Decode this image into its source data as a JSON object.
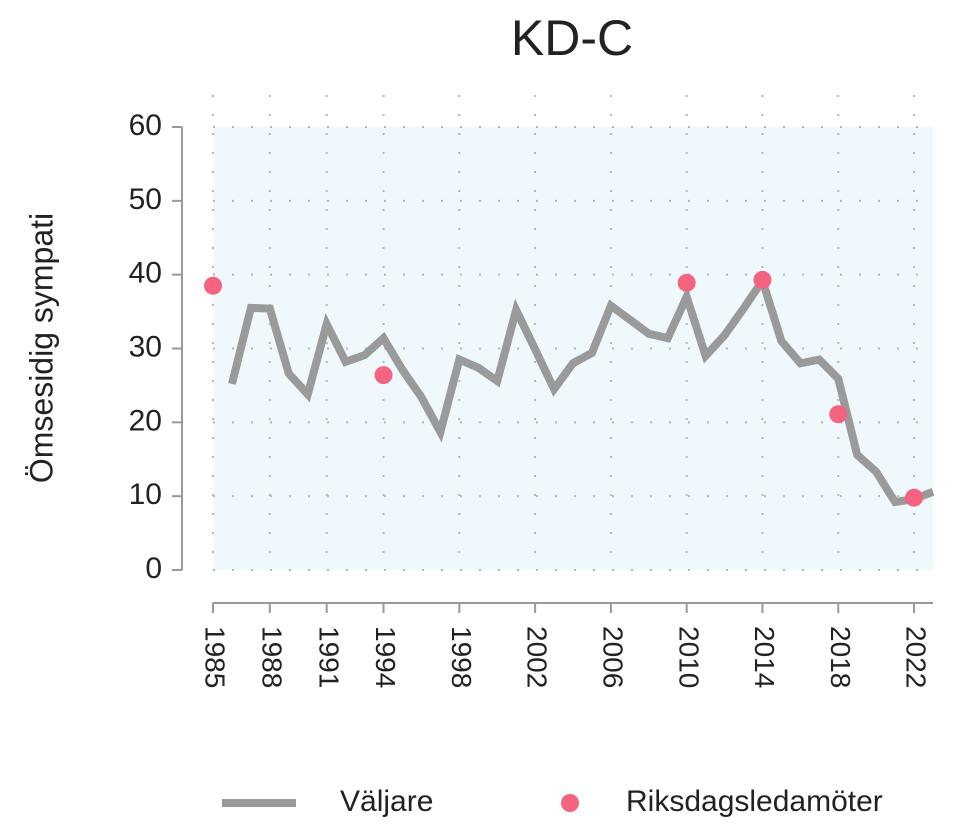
{
  "chart_data": {
    "type": "line",
    "title": "KD-C",
    "ylabel": "Ömsesidig sympati",
    "xlim": [
      1985,
      2023
    ],
    "xticks": [
      1985,
      1988,
      1991,
      1994,
      1998,
      2002,
      2006,
      2010,
      2014,
      2018,
      2022
    ],
    "ylim": [
      0,
      60
    ],
    "yticks": [
      0,
      10,
      20,
      30,
      40,
      50,
      60
    ],
    "grid": true,
    "series": [
      {
        "name": "Väljare",
        "type": "line",
        "color": "#9a9a9a",
        "x": [
          1986,
          1987,
          1988,
          1989,
          1990,
          1991,
          1992,
          1993,
          1994,
          1995,
          1996,
          1997,
          1998,
          1999,
          2000,
          2001,
          2002,
          2003,
          2004,
          2005,
          2006,
          2007,
          2008,
          2009,
          2010,
          2011,
          2012,
          2013,
          2014,
          2015,
          2016,
          2017,
          2018,
          2019,
          2020,
          2021,
          2022,
          2023
        ],
        "values": [
          25.2,
          35.5,
          35.4,
          26.6,
          23.8,
          33.3,
          28.2,
          29.1,
          31.4,
          27.1,
          23.4,
          18.7,
          28.5,
          27.4,
          25.6,
          35.2,
          29.9,
          24.5,
          28.0,
          29.4,
          35.8,
          33.9,
          32.0,
          31.4,
          37.0,
          29.0,
          31.8,
          35.4,
          39.2,
          31.0,
          28.0,
          28.5,
          25.9,
          15.6,
          13.3,
          9.2,
          9.6,
          10.6
        ]
      },
      {
        "name": "Riksdagsledamöter",
        "type": "scatter",
        "color": "#f4637f",
        "x": [
          1985,
          1994,
          2010,
          2014,
          2018,
          2022
        ],
        "values": [
          38.5,
          26.4,
          38.9,
          39.3,
          21.1,
          9.8
        ]
      }
    ]
  }
}
